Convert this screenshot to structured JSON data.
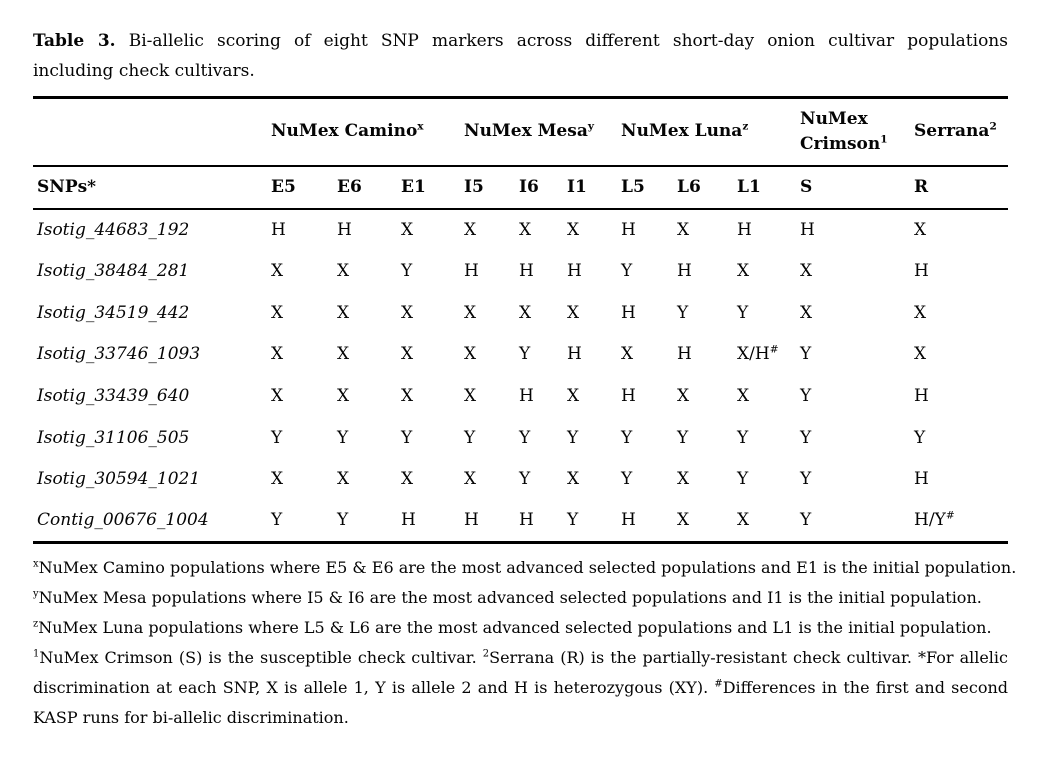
{
  "colors": {
    "text": "#050505",
    "background": "#ffffff",
    "rule": "#000000"
  },
  "title": {
    "label": "Table 3.",
    "line1_rest": "Bi-allelic scoring of eight SNP markers across different short-day onion cultivar populations",
    "line2": "including check cultivars."
  },
  "table": {
    "row_header": "SNPs*",
    "groups": [
      {
        "name": "NuMex Camino",
        "sup": "x",
        "span": 3
      },
      {
        "name": "NuMex Mesa",
        "sup": "y",
        "span": 3
      },
      {
        "name": "NuMex Luna",
        "sup": "z",
        "span": 3
      },
      {
        "name": "NuMex Crimson",
        "sup": "1",
        "span": 1
      },
      {
        "name": "Serrana",
        "sup": "2",
        "span": 1
      }
    ],
    "columns": [
      "E5",
      "E6",
      "E1",
      "I5",
      "I6",
      "I1",
      "L5",
      "L6",
      "L1",
      "S",
      "R"
    ],
    "rows": [
      {
        "snp": "Isotig_44683_192",
        "values": [
          "H",
          "H",
          "X",
          "X",
          "X",
          "X",
          "H",
          "X",
          "H",
          "H",
          "X"
        ]
      },
      {
        "snp": "Isotig_38484_281",
        "values": [
          "X",
          "X",
          "Y",
          "H",
          "H",
          "H",
          "Y",
          "H",
          "X",
          "X",
          "H"
        ]
      },
      {
        "snp": "Isotig_34519_442",
        "values": [
          "X",
          "X",
          "X",
          "X",
          "X",
          "X",
          "H",
          "Y",
          "Y",
          "X",
          "X"
        ]
      },
      {
        "snp": "Isotig_33746_1093",
        "values": [
          "X",
          "X",
          "X",
          "X",
          "Y",
          "H",
          "X",
          "H",
          "X/H#",
          "Y",
          "X"
        ]
      },
      {
        "snp": "Isotig_33439_640",
        "values": [
          "X",
          "X",
          "X",
          "X",
          "H",
          "X",
          "H",
          "X",
          "X",
          "Y",
          "H"
        ]
      },
      {
        "snp": "Isotig_31106_505",
        "values": [
          "Y",
          "Y",
          "Y",
          "Y",
          "Y",
          "Y",
          "Y",
          "Y",
          "Y",
          "Y",
          "Y"
        ]
      },
      {
        "snp": "Isotig_30594_1021",
        "values": [
          "X",
          "X",
          "X",
          "X",
          "Y",
          "X",
          "Y",
          "X",
          "Y",
          "Y",
          "H"
        ]
      },
      {
        "snp": "Contig_00676_1004",
        "values": [
          "Y",
          "Y",
          "H",
          "H",
          "H",
          "Y",
          "H",
          "X",
          "X",
          "Y",
          "H/Y#"
        ]
      }
    ]
  },
  "footnotes": {
    "lines": [
      {
        "segments": [
          {
            "sup": "x"
          },
          {
            "text": "NuMex Camino populations where E5 & E6 are the most advanced selected populations and E1 is the initial population."
          }
        ]
      },
      {
        "segments": [
          {
            "sup": "y"
          },
          {
            "text": "NuMex Mesa populations where I5 & I6 are the most advanced selected populations and I1 is the initial population."
          }
        ]
      },
      {
        "segments": [
          {
            "sup": "z"
          },
          {
            "text": "NuMex Luna populations where L5 & L6 are the most advanced selected populations and L1 is the initial population."
          }
        ]
      }
    ],
    "paragraph": {
      "segments": [
        {
          "sup": "1"
        },
        {
          "text": "NuMex Crimson (S) is the susceptible check cultivar. "
        },
        {
          "sup": "2"
        },
        {
          "text": "Serrana (R) is the partially-resistant check cultivar. *For allelic discrimination at each SNP, X is allele 1, Y is allele 2 and H is heterozygous (XY). "
        },
        {
          "sup": "#"
        },
        {
          "text": "Differences in the first and second KASP runs for bi-allelic discrimination."
        }
      ]
    }
  }
}
